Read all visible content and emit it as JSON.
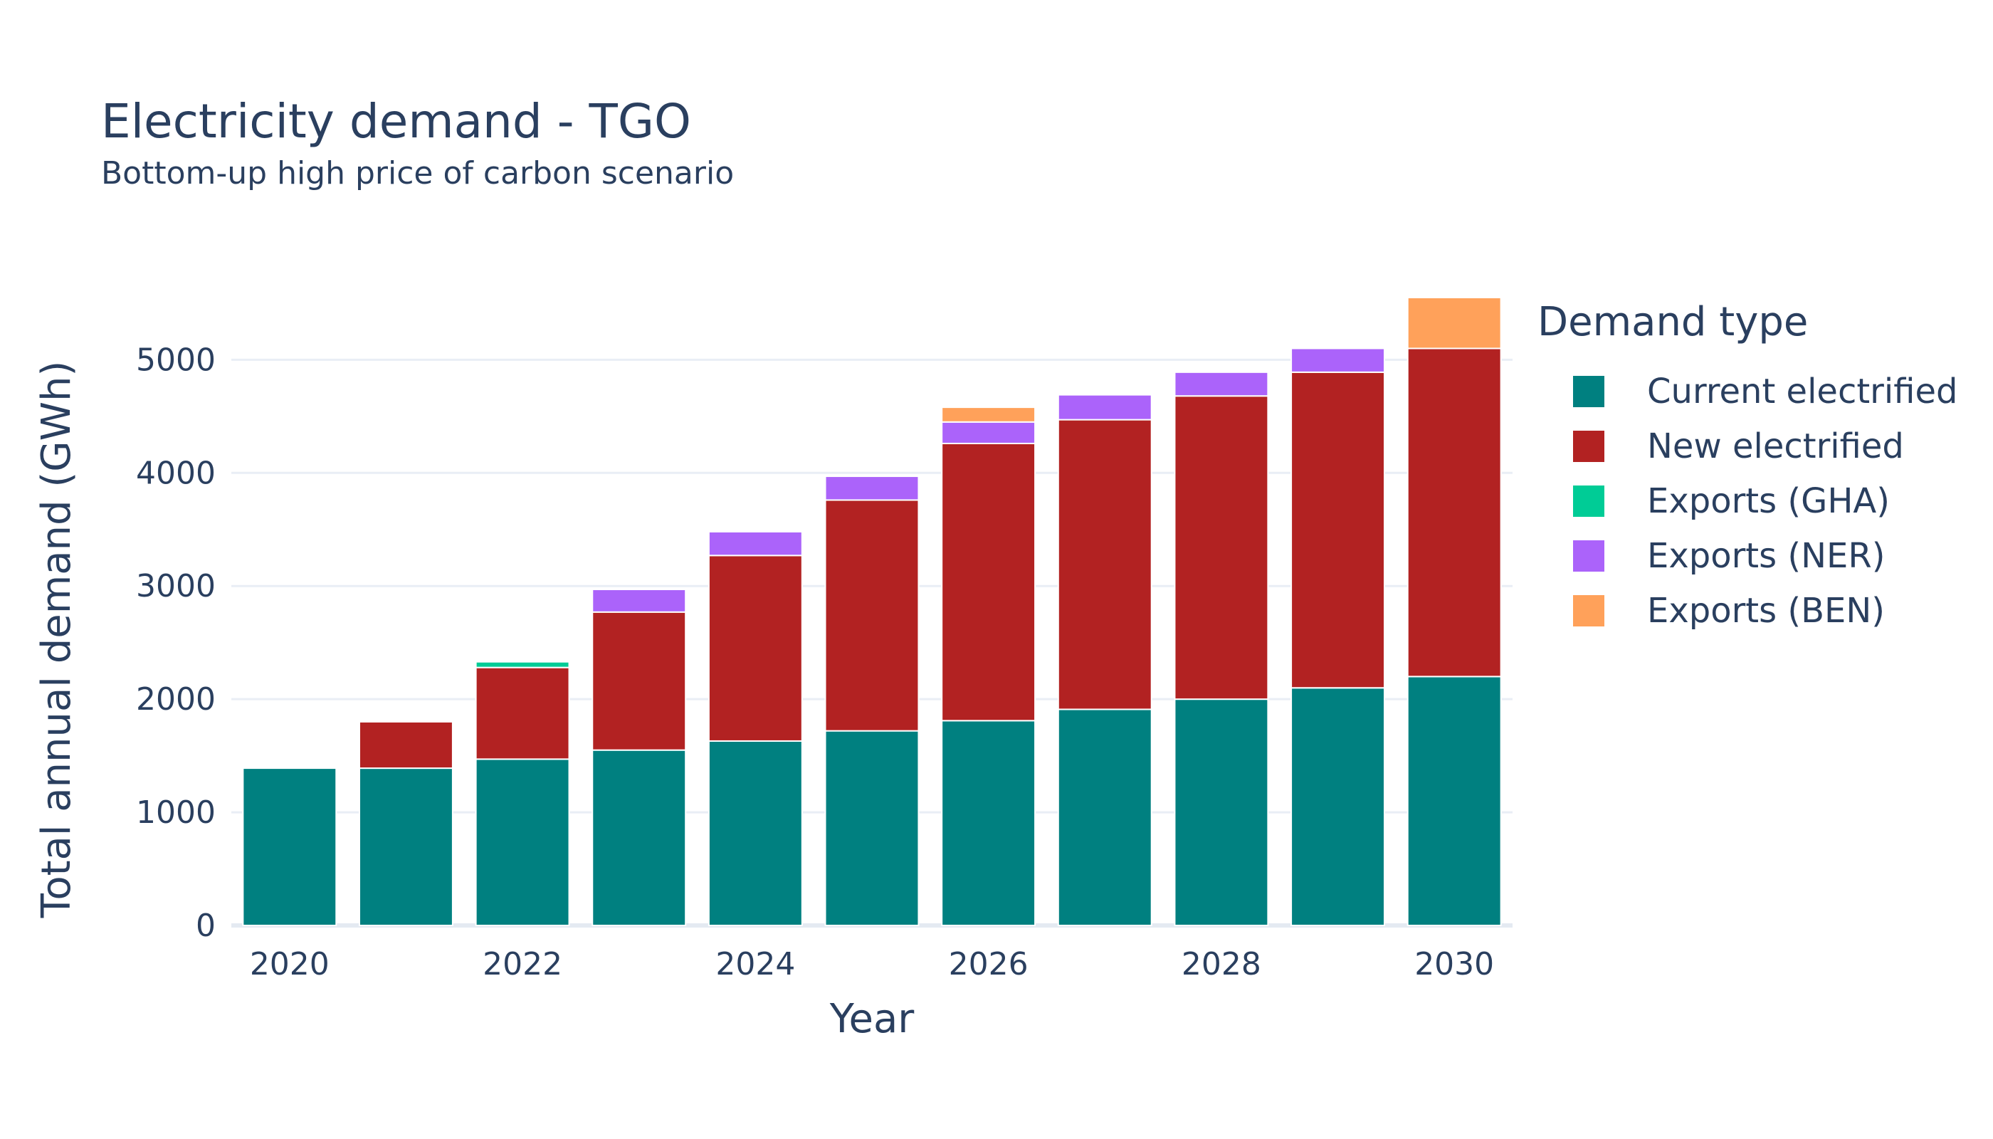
{
  "chart_data": {
    "type": "bar",
    "barmode": "stack",
    "title": "Electricity demand - TGO",
    "subtitle": "Bottom-up high price of carbon scenario",
    "xlabel": "Year",
    "ylabel": "Total annual demand (GWh)",
    "legend_title": "Demand type",
    "legend_position": "right",
    "grid": true,
    "ylim": [
      0,
      5600
    ],
    "x": [
      2020,
      2021,
      2022,
      2023,
      2024,
      2025,
      2026,
      2027,
      2028,
      2029,
      2030
    ],
    "x_ticks": [
      "2020",
      "2022",
      "2024",
      "2026",
      "2028",
      "2030"
    ],
    "y_ticks": [
      "0",
      "1000",
      "2000",
      "3000",
      "4000",
      "5000"
    ],
    "series": [
      {
        "name": "Current electrified",
        "color": "#008080",
        "values": [
          1390,
          1390,
          1470,
          1550,
          1630,
          1720,
          1810,
          1910,
          2000,
          2100,
          2200
        ]
      },
      {
        "name": "New electrified",
        "color": "#b22222",
        "values": [
          0,
          410,
          810,
          1220,
          1640,
          2040,
          2450,
          2560,
          2680,
          2790,
          2900
        ]
      },
      {
        "name": "Exports (GHA)",
        "color": "#00cc96",
        "values": [
          0,
          0,
          50,
          0,
          0,
          0,
          0,
          0,
          0,
          0,
          0
        ]
      },
      {
        "name": "Exports (NER)",
        "color": "#ab63fa",
        "values": [
          0,
          0,
          0,
          200,
          210,
          210,
          190,
          220,
          210,
          210,
          0
        ]
      },
      {
        "name": "Exports (BEN)",
        "color": "#ffa15a",
        "values": [
          0,
          0,
          0,
          0,
          0,
          0,
          130,
          0,
          0,
          0,
          450
        ]
      }
    ]
  }
}
